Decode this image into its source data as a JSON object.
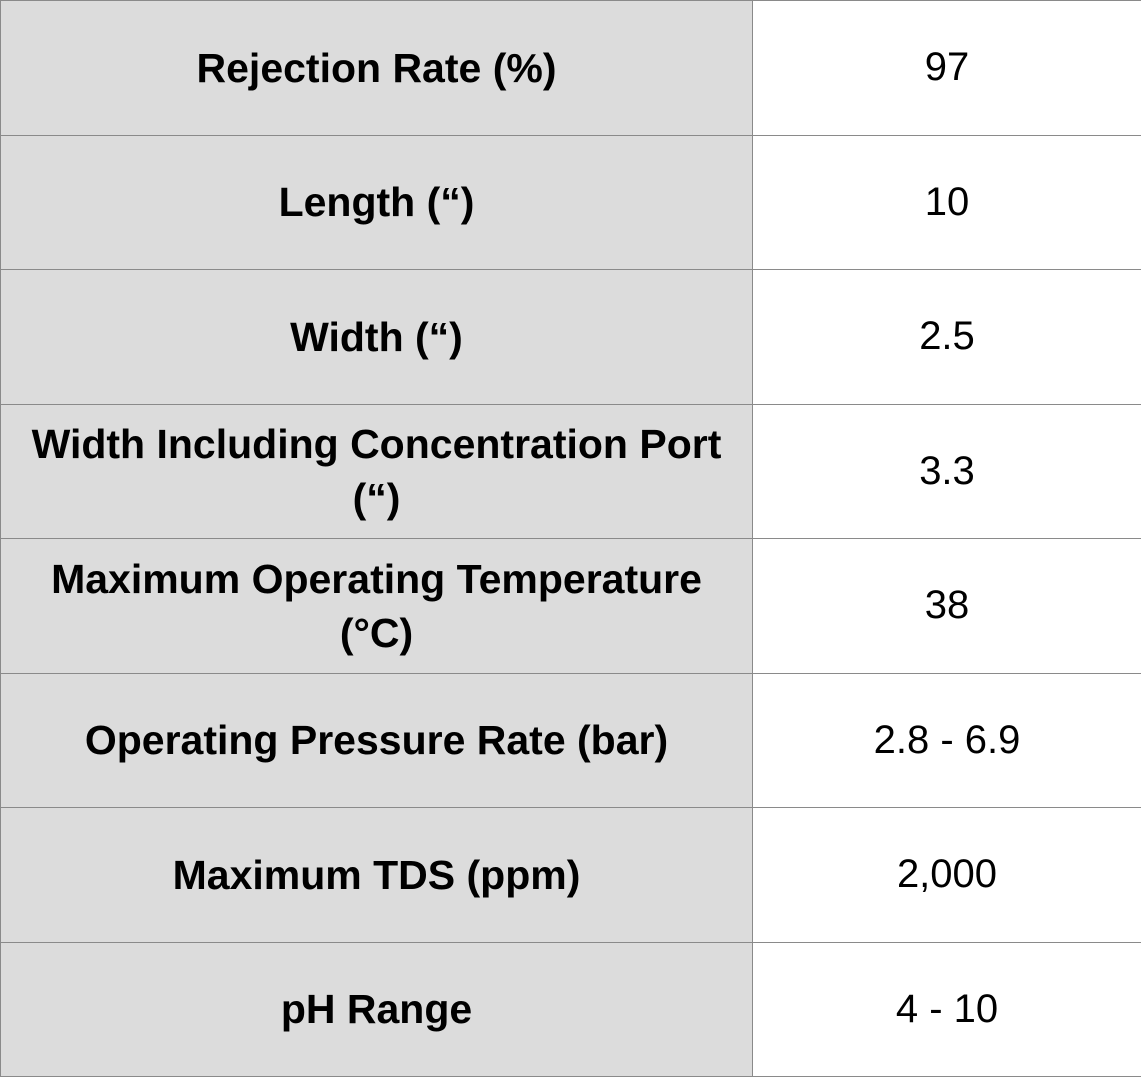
{
  "rows": [
    {
      "label": "Rejection Rate (%)",
      "value": "97"
    },
    {
      "label": "Length (“)",
      "value": "10"
    },
    {
      "label": "Width (“)",
      "value": "2.5"
    },
    {
      "label": "Width Including Concentration Port (“)",
      "value": "3.3"
    },
    {
      "label": "Maximum Operating Temperature (°C)",
      "value": "38"
    },
    {
      "label": "Operating Pressure Rate (bar)",
      "value": "2.8 - 6.9"
    },
    {
      "label": "Maximum TDS (ppm)",
      "value": "2,000"
    },
    {
      "label": "pH Range",
      "value": "4 - 10"
    }
  ],
  "colors": {
    "label_background": "#dcdcdc",
    "value_background": "#ffffff",
    "border": "#8a8a8a",
    "text": "#000000"
  }
}
